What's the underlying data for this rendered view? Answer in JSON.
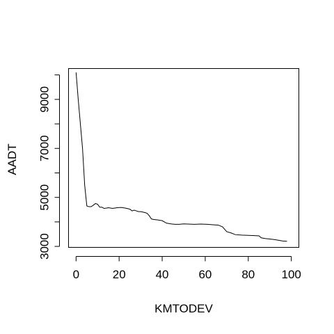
{
  "chart_data": {
    "type": "line",
    "xlabel": "KMTODEV",
    "ylabel": "AADT",
    "xlim": [
      -3.5,
      103.5
    ],
    "ylim": [
      2960,
      10260
    ],
    "x_ticks": [
      0,
      20,
      40,
      60,
      80,
      100
    ],
    "y_ticks": [
      3000,
      4000,
      5000,
      6000,
      7000,
      8000,
      9000,
      10000
    ],
    "y_tick_labels": [
      "3000",
      "",
      "5000",
      "",
      "7000",
      "",
      "9000",
      ""
    ],
    "grid": false,
    "legend": "none",
    "series": [
      {
        "x": [
          0,
          1,
          2,
          3,
          4,
          5,
          6,
          7,
          8,
          9,
          10,
          11,
          12,
          13,
          14,
          15,
          17,
          19,
          21,
          23,
          25,
          26,
          27,
          28,
          29,
          30,
          31,
          32,
          33,
          34,
          35,
          36,
          38,
          40,
          42,
          44,
          46,
          48,
          50,
          52,
          55,
          58,
          61,
          64,
          66,
          68,
          69,
          70,
          72,
          74,
          77,
          80,
          83,
          85,
          86,
          88,
          90,
          92,
          94,
          96,
          98
        ],
        "y": [
          10100,
          9000,
          8000,
          7000,
          5500,
          4650,
          4620,
          4620,
          4680,
          4750,
          4720,
          4600,
          4600,
          4550,
          4560,
          4580,
          4550,
          4580,
          4590,
          4560,
          4520,
          4450,
          4480,
          4450,
          4420,
          4420,
          4400,
          4380,
          4350,
          4250,
          4120,
          4100,
          4080,
          4050,
          3950,
          3920,
          3900,
          3900,
          3920,
          3910,
          3900,
          3910,
          3900,
          3880,
          3870,
          3800,
          3700,
          3600,
          3550,
          3480,
          3460,
          3450,
          3440,
          3430,
          3350,
          3320,
          3300,
          3280,
          3250,
          3220,
          3210
        ]
      }
    ]
  }
}
